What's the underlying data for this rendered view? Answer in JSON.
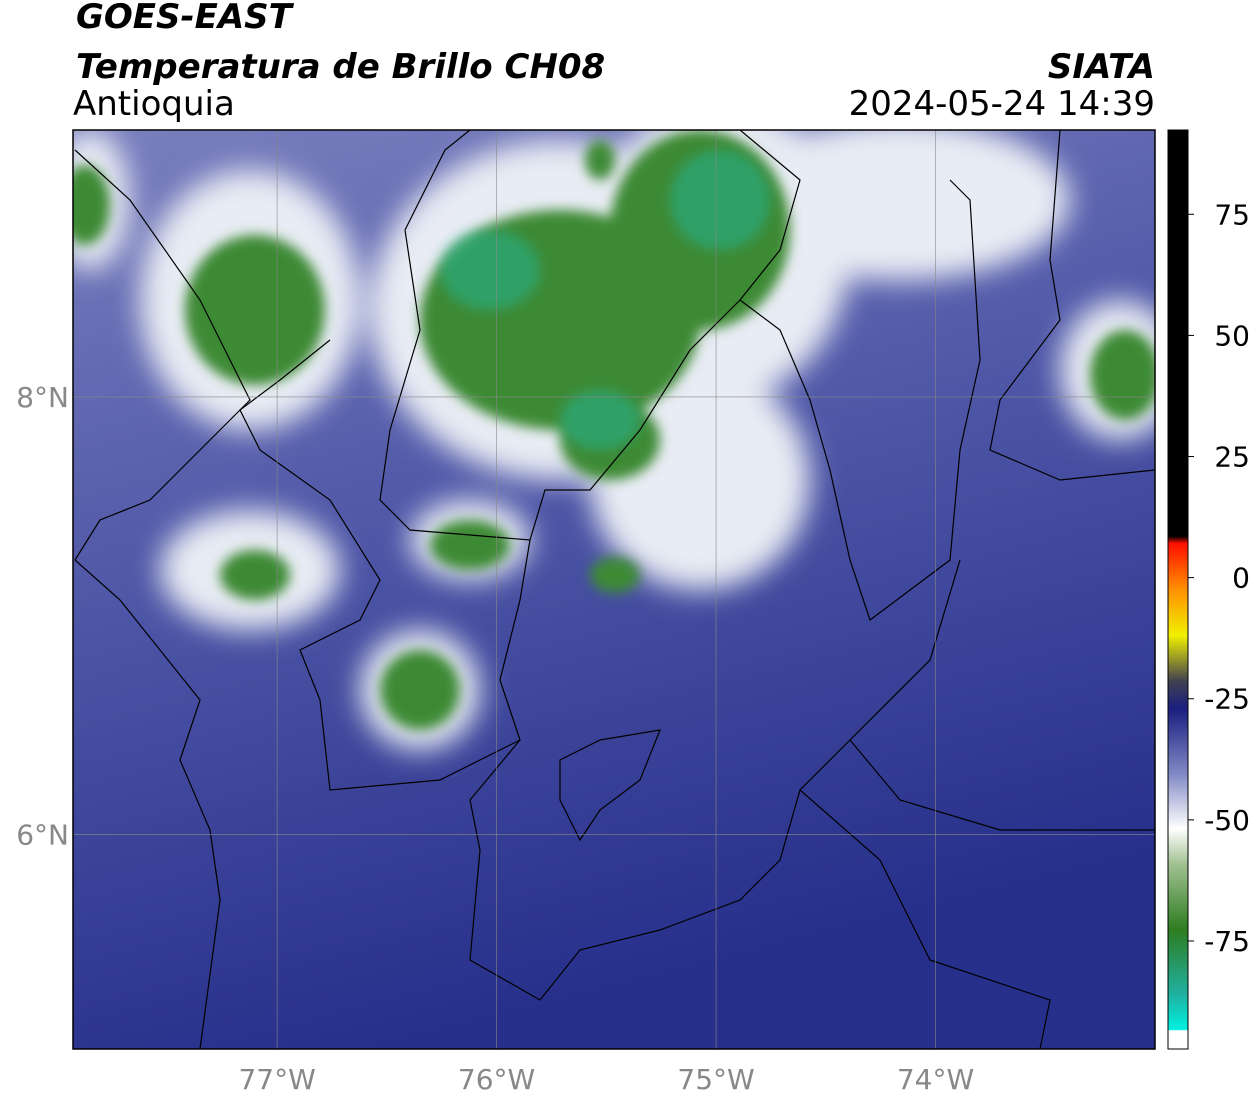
{
  "header": {
    "title": "GOES-EAST",
    "subtitle": "Temperatura de Brillo CH08",
    "region": "Antioquia",
    "source": "SIATA",
    "datetime": "2024-05-24 14:39"
  },
  "map": {
    "xlim": [
      -77.93,
      -73.0
    ],
    "ylim": [
      5.02,
      9.22
    ],
    "xticks": [
      {
        "value": -77,
        "label": "77°W"
      },
      {
        "value": -76,
        "label": "76°W"
      },
      {
        "value": -75,
        "label": "75°W"
      },
      {
        "value": -74,
        "label": "74°W"
      }
    ],
    "yticks": [
      {
        "value": 6,
        "label": "6°N"
      },
      {
        "value": 8,
        "label": "8°N"
      }
    ],
    "grid": true
  },
  "colorbar": {
    "lim": [
      -97.3,
      92.4
    ],
    "ticks": [
      -75,
      -50,
      -25,
      0,
      25,
      50,
      75
    ]
  }
}
